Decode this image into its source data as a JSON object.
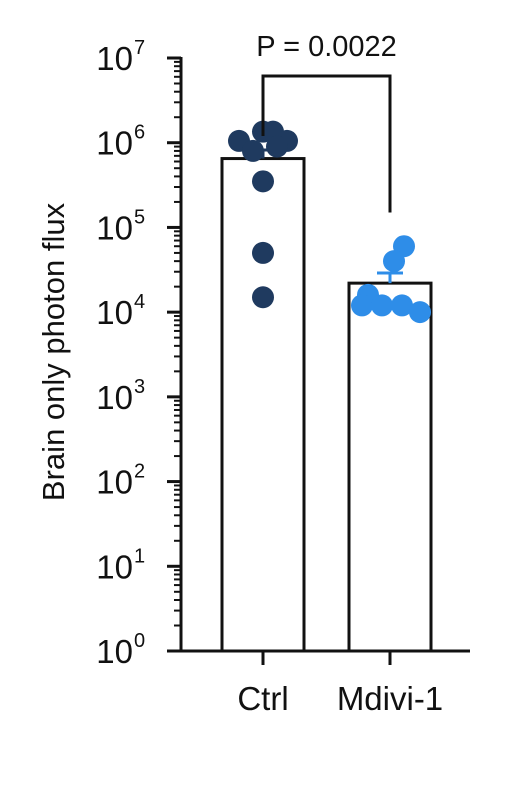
{
  "chart_data": {
    "type": "bar",
    "title": "",
    "ylabel": "Brain only photon flux",
    "xlabel": "",
    "yscale": "log",
    "ylim": [
      1,
      10000000
    ],
    "y_ticks": [
      {
        "base": "10",
        "exp": "0",
        "value": 1
      },
      {
        "base": "10",
        "exp": "1",
        "value": 10
      },
      {
        "base": "10",
        "exp": "2",
        "value": 100
      },
      {
        "base": "10",
        "exp": "3",
        "value": 1000
      },
      {
        "base": "10",
        "exp": "4",
        "value": 10000
      },
      {
        "base": "10",
        "exp": "5",
        "value": 100000
      },
      {
        "base": "10",
        "exp": "6",
        "value": 1000000
      },
      {
        "base": "10",
        "exp": "7",
        "value": 10000000
      }
    ],
    "categories": [
      "Ctrl",
      "Mdivi-1"
    ],
    "series": [
      {
        "category": "Ctrl",
        "mean": 650000,
        "error_upper": 820000,
        "color": "#1f3a5f",
        "points": [
          1050000,
          1350000,
          1350000,
          1050000,
          800000,
          900000,
          350000,
          50000,
          15000
        ]
      },
      {
        "category": "Mdivi-1",
        "mean": 22000,
        "error_upper": 29000,
        "color": "#2e8de8",
        "points": [
          60000,
          40000,
          16000,
          12000,
          12000,
          12000,
          10000
        ]
      }
    ],
    "annotation": {
      "text": "P = 0.0022",
      "between": [
        "Ctrl",
        "Mdivi-1"
      ]
    },
    "grid": false,
    "legend": "none"
  }
}
